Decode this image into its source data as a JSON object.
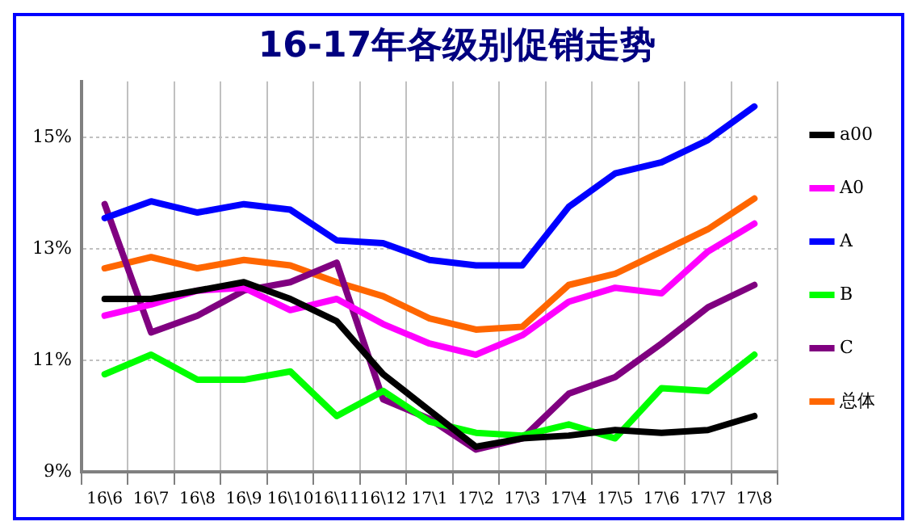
{
  "chart_data": {
    "type": "line",
    "title": "16-17年各级别促销走势",
    "categories": [
      "16\\6",
      "16\\7",
      "16\\8",
      "16\\9",
      "16\\10",
      "16\\11",
      "16\\12",
      "17\\1",
      "17\\2",
      "17\\3",
      "17\\4",
      "17\\5",
      "17\\6",
      "17\\7",
      "17\\8"
    ],
    "series": [
      {
        "name": "a00",
        "color": "#000000",
        "values": [
          12.1,
          12.1,
          12.25,
          12.4,
          12.1,
          11.7,
          10.75,
          10.1,
          9.45,
          9.6,
          9.65,
          9.75,
          9.7,
          9.75,
          10.0
        ]
      },
      {
        "name": "A0",
        "color": "#ff00ff",
        "values": [
          11.8,
          12.0,
          12.25,
          12.3,
          11.9,
          12.1,
          11.65,
          11.3,
          11.1,
          11.45,
          12.05,
          12.3,
          12.2,
          12.95,
          13.45
        ]
      },
      {
        "name": "A",
        "color": "#0000ff",
        "values": [
          13.55,
          13.85,
          13.65,
          13.8,
          13.7,
          13.15,
          13.1,
          12.8,
          12.7,
          12.7,
          13.75,
          14.35,
          14.55,
          14.95,
          15.55
        ]
      },
      {
        "name": "B",
        "color": "#00ff00",
        "values": [
          10.75,
          11.1,
          10.65,
          10.65,
          10.8,
          10.0,
          10.45,
          9.9,
          9.7,
          9.65,
          9.85,
          9.6,
          10.5,
          10.45,
          11.1
        ]
      },
      {
        "name": "C",
        "color": "#800080",
        "values": [
          13.8,
          11.5,
          11.8,
          12.25,
          12.4,
          12.75,
          10.3,
          9.95,
          9.4,
          9.6,
          10.4,
          10.7,
          11.3,
          11.95,
          12.35
        ]
      },
      {
        "name": "总体",
        "color": "#ff6600",
        "values": [
          12.65,
          12.85,
          12.65,
          12.8,
          12.7,
          12.4,
          12.15,
          11.75,
          11.55,
          11.6,
          12.35,
          12.55,
          12.95,
          13.35,
          13.9
        ]
      }
    ],
    "ylim": [
      9,
      16
    ],
    "yticks": [
      {
        "value": 9,
        "label": "9%"
      },
      {
        "value": 11,
        "label": "11%"
      },
      {
        "value": 13,
        "label": "13%"
      },
      {
        "value": 15,
        "label": "15%"
      }
    ],
    "grid": true,
    "legend": "right",
    "marker": "none",
    "line_style": "solid"
  }
}
